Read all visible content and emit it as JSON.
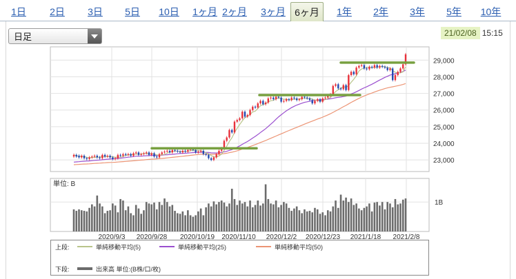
{
  "tabs": [
    {
      "label": "1日",
      "active": false
    },
    {
      "label": "2日",
      "active": false
    },
    {
      "label": "3日",
      "active": false
    },
    {
      "label": "5日",
      "active": false
    },
    {
      "label": "10日",
      "active": false
    },
    {
      "label": "1ヶ月",
      "active": false
    },
    {
      "label": "2ヶ月",
      "active": false
    },
    {
      "label": "3ヶ月",
      "active": false
    },
    {
      "label": "6ヶ月",
      "active": true
    },
    {
      "label": "1年",
      "active": false
    },
    {
      "label": "2年",
      "active": false
    },
    {
      "label": "3年",
      "active": false
    },
    {
      "label": "5年",
      "active": false
    },
    {
      "label": "10年",
      "active": false
    }
  ],
  "dropdown": {
    "selected": "日足"
  },
  "timestamp": {
    "date": "21/02/08",
    "time": "15:15"
  },
  "colors": {
    "up": "#e8303a",
    "down": "#2348b0",
    "ma5": "#b9c48a",
    "ma25": "#9b4fcf",
    "ma50": "#ec9474",
    "resistance": "#78a040",
    "volume": "#6b6b6b",
    "link": "#2a5db0"
  },
  "legend": {
    "upper_label": "上段:",
    "lower_label": "下段:",
    "ma5": "単純移動平均(5)",
    "ma25": "単純移動平均(25)",
    "ma50": "単純移動平均(50)",
    "volume": "出来高 単位:(B株/口/枚)"
  },
  "chart_data": {
    "type": "candlestick",
    "price_axis": {
      "ticks": [
        23000,
        24000,
        25000,
        26000,
        27000,
        28000,
        29000
      ],
      "tick_labels": [
        "23,000",
        "24,000",
        "25,000",
        "26,000",
        "27,000",
        "28,000",
        "29,000"
      ],
      "ylim": [
        22300,
        29800
      ]
    },
    "x_ticks": [
      "2020/9/3",
      "2020/9/28",
      "2020/10/19",
      "2020/11/10",
      "2020/12/2",
      "2020/12/23",
      "2021/1/18",
      "2021/2/8"
    ],
    "volume_axis": {
      "unit_label": "単位: B",
      "tick_labels": [
        "1B"
      ],
      "ticks": [
        1.0
      ],
      "ylim": [
        0,
        1.8
      ]
    },
    "grid": true,
    "resistance_levels": [
      {
        "value": 23700,
        "from": "2020/9/28",
        "to": "2020/11/10"
      },
      {
        "value": 26900,
        "from": "2020/11/10",
        "to": "2020/12/23"
      },
      {
        "value": 28850,
        "from": "2020/12/23",
        "to": "2021/2/8"
      }
    ],
    "candles": {
      "closes": [
        23300,
        23200,
        23150,
        23250,
        23100,
        23050,
        23150,
        23200,
        23250,
        23150,
        23100,
        23300,
        23200,
        23250,
        23150,
        23050,
        23100,
        23300,
        23250,
        23350,
        23300,
        23350,
        23250,
        23400,
        23450,
        23300,
        23350,
        23400,
        23450,
        23300,
        23400,
        23200,
        23150,
        23350,
        23450,
        23500,
        23550,
        23450,
        23600,
        23550,
        23500,
        23450,
        23550,
        23500,
        23600,
        23650,
        23600,
        23450,
        23500,
        23550,
        23350,
        23300,
        23100,
        23000,
        23150,
        23350,
        23550,
        23700,
        24150,
        24350,
        24800,
        24650,
        25300,
        25400,
        25500,
        25900,
        25600,
        25700,
        26000,
        26200,
        26150,
        26400,
        26550,
        26350,
        26450,
        26700,
        26750,
        26650,
        26800,
        26750,
        26500,
        26550,
        26650,
        26600,
        26750,
        26700,
        26600,
        26650,
        26800,
        26750,
        26700,
        26600,
        26400,
        26550,
        26650,
        26500,
        26700,
        26750,
        26850,
        26950,
        27450,
        27550,
        27300,
        27250,
        27500,
        27200,
        28100,
        28300,
        28150,
        28550,
        28650,
        28700,
        28500,
        28450,
        28600,
        28550,
        28700,
        28550,
        28650,
        28600,
        28550,
        28400,
        28500,
        27800,
        28100,
        28300,
        28500,
        28750,
        29350
      ],
      "opens": [
        23200,
        23300,
        23250,
        23150,
        23250,
        23100,
        23050,
        23150,
        23200,
        23250,
        23150,
        23100,
        23300,
        23200,
        23250,
        23150,
        23050,
        23100,
        23300,
        23250,
        23350,
        23300,
        23350,
        23250,
        23400,
        23450,
        23300,
        23350,
        23400,
        23450,
        23300,
        23400,
        23200,
        23150,
        23350,
        23450,
        23500,
        23550,
        23450,
        23600,
        23550,
        23500,
        23450,
        23550,
        23500,
        23600,
        23650,
        23600,
        23450,
        23500,
        23550,
        23350,
        23300,
        23100,
        23000,
        23150,
        23350,
        23550,
        23700,
        24150,
        24350,
        24800,
        24650,
        25300,
        25400,
        25500,
        25900,
        25600,
        25700,
        26000,
        26200,
        26150,
        26400,
        26550,
        26350,
        26450,
        26700,
        26750,
        26650,
        26800,
        26750,
        26500,
        26550,
        26650,
        26600,
        26750,
        26700,
        26600,
        26650,
        26800,
        26750,
        26700,
        26600,
        26400,
        26550,
        26650,
        26500,
        26700,
        26750,
        26850,
        26950,
        27450,
        27550,
        27300,
        27250,
        27500,
        27200,
        28100,
        28300,
        28150,
        28550,
        28650,
        28700,
        28500,
        28450,
        28600,
        28550,
        28700,
        28550,
        28650,
        28600,
        28550,
        28400,
        28500,
        27800,
        28100,
        28300,
        28500,
        28750
      ]
    },
    "volumes": [
      0.75,
      0.7,
      0.75,
      0.72,
      0.7,
      0.68,
      0.8,
      0.92,
      0.85,
      1.22,
      0.95,
      0.85,
      0.62,
      0.7,
      0.72,
      0.95,
      0.88,
      0.65,
      1.1,
      1.05,
      0.72,
      0.85,
      0.62,
      0.55,
      0.9,
      0.78,
      0.6,
      0.72,
      1.0,
      0.95,
      0.92,
      0.98,
      0.75,
      1.0,
      0.9,
      1.12,
      1.0,
      0.85,
      0.9,
      0.7,
      0.62,
      0.6,
      0.68,
      0.55,
      0.72,
      0.55,
      0.5,
      0.55,
      0.68,
      0.78,
      0.55,
      0.82,
      0.95,
      0.85,
      1.02,
      0.92,
      1.0,
      1.05,
      0.98,
      0.85,
      0.95,
      1.45,
      1.1,
      0.9,
      1.05,
      0.95,
      1.0,
      0.85,
      1.05,
      0.82,
      0.9,
      1.05,
      0.88,
      0.95,
      1.6,
      1.1,
      0.95,
      0.92,
      1.05,
      0.82,
      0.9,
      1.0,
      0.95,
      0.8,
      0.7,
      0.78,
      0.85,
      0.72,
      0.62,
      0.75,
      0.68,
      0.7,
      0.65,
      0.8,
      0.75,
      0.6,
      0.65,
      0.55,
      0.72,
      0.68,
      0.85,
      1.05,
      0.8,
      1.25,
      1.05,
      1.15,
      1.0,
      1.12,
      0.9,
      0.95,
      0.78,
      0.72,
      0.8,
      0.85,
      0.95,
      0.68,
      0.98,
      1.0,
      0.88,
      1.0,
      0.75,
      1.0,
      0.95,
      0.82,
      1.1,
      0.92,
      0.95,
      1.08,
      1.12
    ]
  }
}
